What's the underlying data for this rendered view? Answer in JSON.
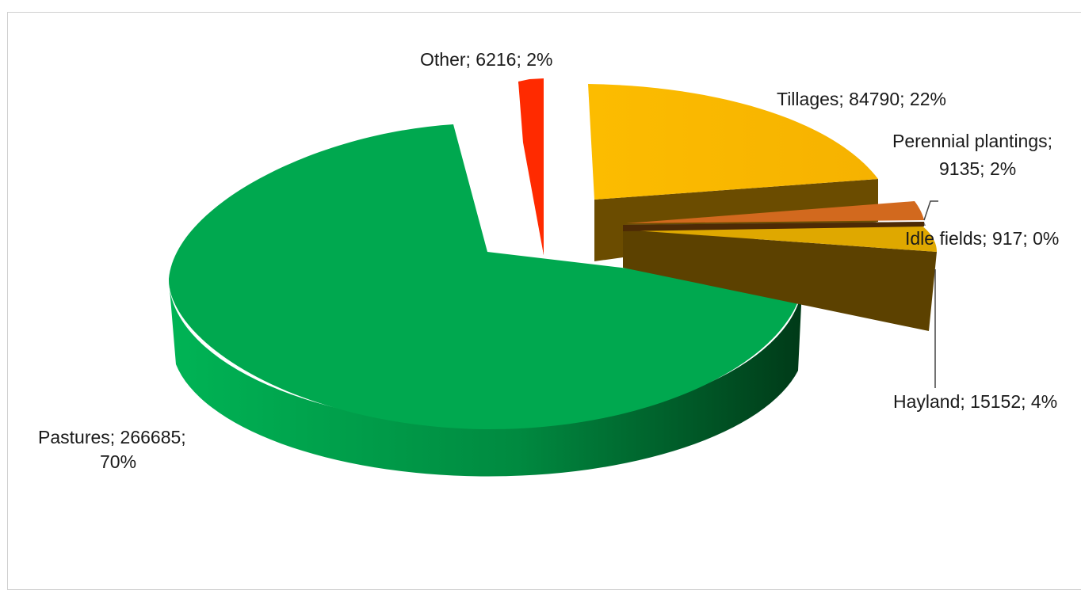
{
  "chart_data": {
    "type": "pie",
    "three_d": true,
    "exploded": true,
    "label_format": "category; value; percent",
    "slices": [
      {
        "name": "Tillages",
        "value": 84790,
        "percent": "22%",
        "color": "#fcb900",
        "side_color": "#6b4c00",
        "label": "Tillages; 84790; 22%"
      },
      {
        "name": "Perennial plantings",
        "value": 9135,
        "percent": "2%",
        "color": "#d2691e",
        "side_color": "#5a3208",
        "label_lines": [
          "Perennial plantings;",
          "9135; 2%"
        ]
      },
      {
        "name": "Idle fields",
        "value": 917,
        "percent": "0%",
        "color": "#7f7f7f",
        "side_color": "#3a3a3a",
        "label": "Idle fields; 917; 0%"
      },
      {
        "name": "Hayland",
        "value": 15152,
        "percent": "4%",
        "color": "#dfa800",
        "side_color": "#5c4100",
        "label": "Hayland; 15152; 4%"
      },
      {
        "name": "Pastures",
        "value": 266685,
        "percent": "70%",
        "color": "#00a84f",
        "side_color": "#00662e",
        "label_lines": [
          "Pastures; 266685;",
          "70%"
        ]
      },
      {
        "name": "Other",
        "value": 6216,
        "percent": "2%",
        "color": "#ff2a00",
        "side_color": "#7a0a00",
        "label": "Other; 6216; 2%"
      }
    ]
  }
}
